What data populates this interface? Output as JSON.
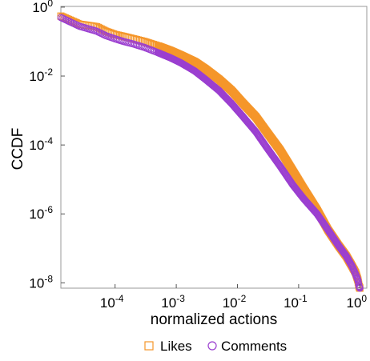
{
  "chart_data": {
    "type": "scatter",
    "xlabel": "normalized actions",
    "ylabel": "CCDF",
    "xscale": "log",
    "yscale": "log",
    "xlim": [
      1.3e-05,
      1.3
    ],
    "ylim": [
      7e-09,
      1.05
    ],
    "xticks": [
      {
        "base": "10",
        "exp": "-4",
        "value": 0.0001
      },
      {
        "base": "10",
        "exp": "-3",
        "value": 0.001
      },
      {
        "base": "10",
        "exp": "-2",
        "value": 0.01
      },
      {
        "base": "10",
        "exp": "-1",
        "value": 0.1
      },
      {
        "base": "10",
        "exp": "0",
        "value": 1
      }
    ],
    "yticks": [
      {
        "base": "10",
        "exp": "0",
        "value": 1
      },
      {
        "base": "10",
        "exp": "-2",
        "value": 0.01
      },
      {
        "base": "10",
        "exp": "-4",
        "value": 0.0001
      },
      {
        "base": "10",
        "exp": "-6",
        "value": 1e-06
      },
      {
        "base": "10",
        "exp": "-8",
        "value": 1e-08
      }
    ],
    "legend_position": "bottom",
    "series": [
      {
        "name": "Likes",
        "marker": "square",
        "color": "#F5962A",
        "x": [
          1.3e-05,
          2.6e-05,
          5e-05,
          7e-05,
          0.0001,
          0.00014,
          0.0002,
          0.0003,
          0.0005,
          0.0008,
          0.0012,
          0.002,
          0.003,
          0.005,
          0.008,
          0.012,
          0.02,
          0.03,
          0.05,
          0.08,
          0.12,
          0.2,
          0.3,
          0.45,
          0.6,
          0.75,
          0.85,
          0.93,
          0.97,
          1.0
        ],
        "y": [
          0.55,
          0.32,
          0.27,
          0.2,
          0.16,
          0.14,
          0.12,
          0.1,
          0.075,
          0.055,
          0.04,
          0.026,
          0.016,
          0.008,
          0.0038,
          0.0017,
          0.00065,
          0.00024,
          7e-05,
          1.8e-05,
          5.5e-06,
          1.3e-06,
          3.5e-07,
          1.2e-07,
          6e-08,
          3e-08,
          2e-08,
          1.2e-08,
          8e-09,
          7e-09
        ]
      },
      {
        "name": "Comments",
        "marker": "circle",
        "color": "#9B3FD0",
        "x": [
          1.3e-05,
          2.6e-05,
          5e-05,
          7e-05,
          0.0001,
          0.00014,
          0.0002,
          0.0003,
          0.0005,
          0.0008,
          0.0012,
          0.002,
          0.003,
          0.005,
          0.008,
          0.012,
          0.02,
          0.03,
          0.05,
          0.08,
          0.12,
          0.2,
          0.3,
          0.45,
          0.6,
          0.75,
          0.85,
          0.93,
          0.97,
          1.0
        ],
        "y": [
          0.5,
          0.28,
          0.2,
          0.15,
          0.12,
          0.1,
          0.085,
          0.068,
          0.048,
          0.034,
          0.024,
          0.014,
          0.008,
          0.0038,
          0.0016,
          0.0007,
          0.00024,
          8.5e-05,
          2.4e-05,
          7e-06,
          2.8e-06,
          1e-06,
          3.5e-07,
          1.2e-07,
          6e-08,
          3e-08,
          1.8e-08,
          1.2e-08,
          8e-09,
          7e-09
        ]
      }
    ]
  }
}
